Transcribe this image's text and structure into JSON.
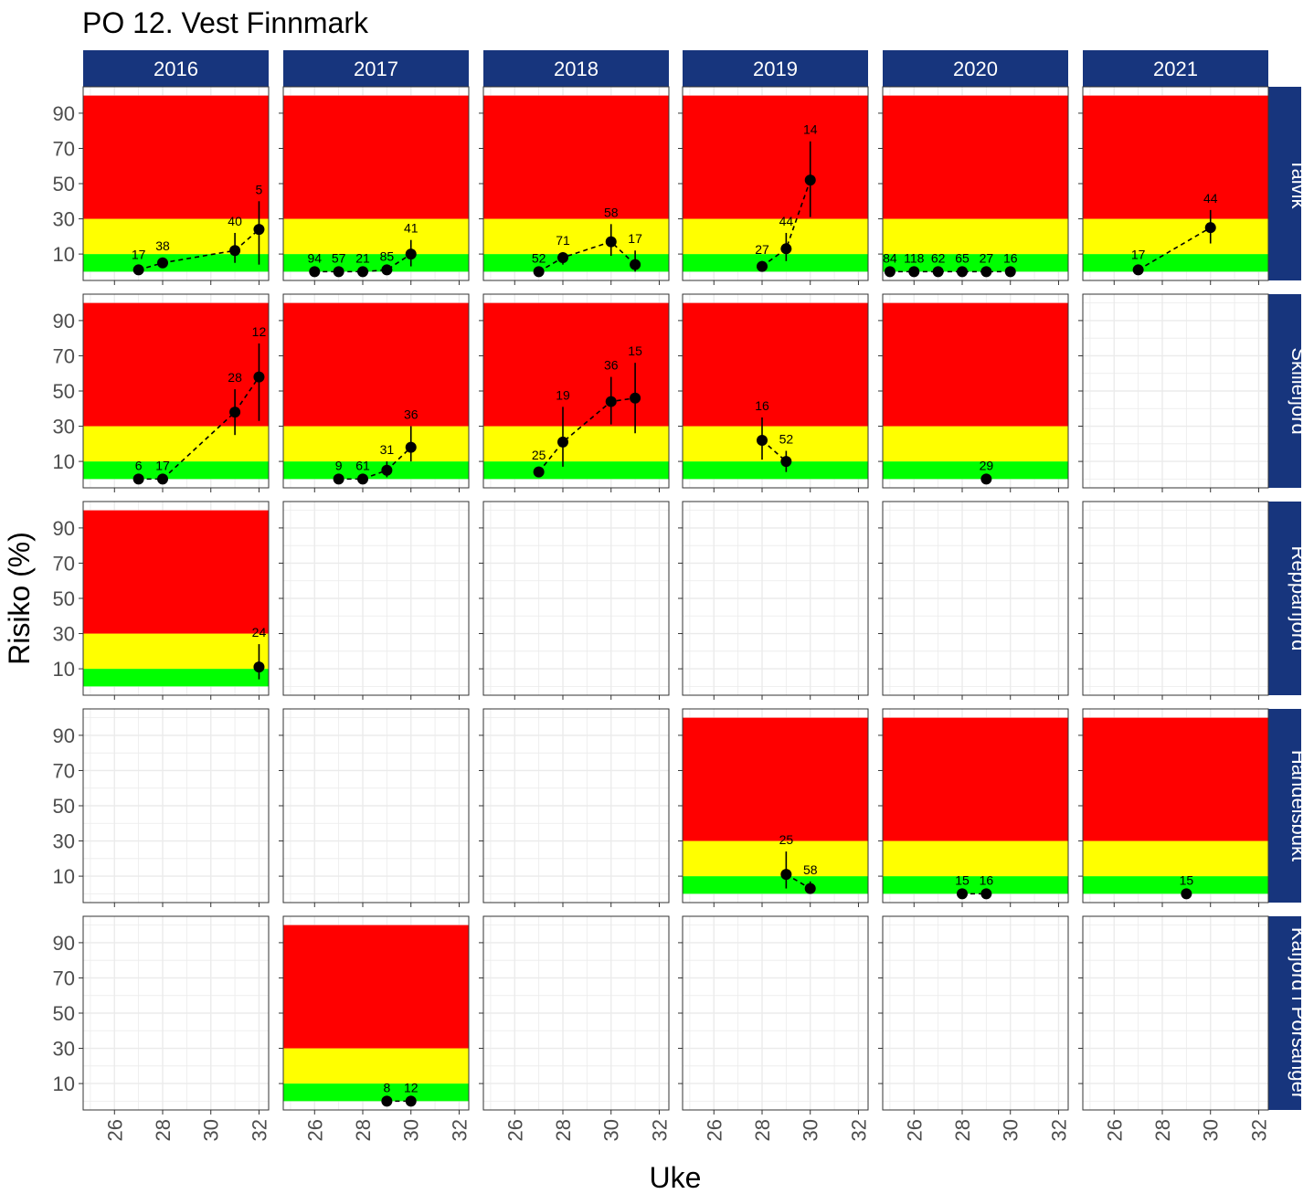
{
  "chart_data": {
    "type": "scatter",
    "title": "PO 12. Vest Finnmark",
    "xlabel": "Uke",
    "ylabel": "Risiko (%)",
    "x_ticks": [
      26,
      28,
      30,
      32
    ],
    "xlim": [
      24.7,
      32.4
    ],
    "y_ticks": [
      10,
      30,
      50,
      70,
      90
    ],
    "ylim": [
      -5,
      105
    ],
    "columns": [
      "2016",
      "2017",
      "2018",
      "2019",
      "2020",
      "2021"
    ],
    "rows": [
      "Talvik",
      "Skillefjord",
      "Repparfjord",
      "Handelsbukt",
      "Kåfjord i Porsanger"
    ],
    "risk_bands": [
      {
        "name": "low",
        "from": 0,
        "to": 10,
        "color": "#00FF00"
      },
      {
        "name": "moderate",
        "from": 10,
        "to": 30,
        "color": "#FFFF00"
      },
      {
        "name": "high",
        "from": 30,
        "to": 100,
        "color": "#FF0000"
      }
    ],
    "colors": {
      "strip_bg": "#17357D",
      "strip_text": "#FFFFFF",
      "grid": "#EBEBEB",
      "point": "#000000"
    },
    "panels": [
      {
        "row": "Talvik",
        "year": "2016",
        "points": [
          {
            "week": 27,
            "risk": 1,
            "lo": 0,
            "hi": 3,
            "n": "17"
          },
          {
            "week": 28,
            "risk": 5,
            "lo": 2,
            "hi": 8,
            "n": "38"
          },
          {
            "week": 31,
            "risk": 12,
            "lo": 5,
            "hi": 22,
            "n": "40"
          },
          {
            "week": 32,
            "risk": 24,
            "lo": 4,
            "hi": 40,
            "n": "5"
          }
        ]
      },
      {
        "row": "Talvik",
        "year": "2017",
        "points": [
          {
            "week": 26,
            "risk": 0,
            "lo": 0,
            "hi": 1,
            "n": "94"
          },
          {
            "week": 27,
            "risk": 0,
            "lo": 0,
            "hi": 1,
            "n": "57"
          },
          {
            "week": 28,
            "risk": 0,
            "lo": 0,
            "hi": 1,
            "n": "21"
          },
          {
            "week": 29,
            "risk": 1,
            "lo": 0,
            "hi": 2,
            "n": "85"
          },
          {
            "week": 30,
            "risk": 10,
            "lo": 3,
            "hi": 18,
            "n": "41"
          }
        ]
      },
      {
        "row": "Talvik",
        "year": "2018",
        "points": [
          {
            "week": 27,
            "risk": 0,
            "lo": 0,
            "hi": 1,
            "n": "52"
          },
          {
            "week": 28,
            "risk": 8,
            "lo": 4,
            "hi": 11,
            "n": "71"
          },
          {
            "week": 30,
            "risk": 17,
            "lo": 9,
            "hi": 27,
            "n": "58"
          },
          {
            "week": 31,
            "risk": 4,
            "lo": 0,
            "hi": 12,
            "n": "17"
          }
        ]
      },
      {
        "row": "Talvik",
        "year": "2019",
        "points": [
          {
            "week": 28,
            "risk": 3,
            "lo": 0,
            "hi": 6,
            "n": "27"
          },
          {
            "week": 29,
            "risk": 13,
            "lo": 6,
            "hi": 22,
            "n": "44"
          },
          {
            "week": 30,
            "risk": 52,
            "lo": 31,
            "hi": 74,
            "n": "14"
          }
        ]
      },
      {
        "row": "Talvik",
        "year": "2020",
        "points": [
          {
            "week": 25,
            "risk": 0,
            "lo": 0,
            "hi": 1,
            "n": "84"
          },
          {
            "week": 26,
            "risk": 0,
            "lo": 0,
            "hi": 1,
            "n": "118"
          },
          {
            "week": 27,
            "risk": 0,
            "lo": 0,
            "hi": 1,
            "n": "62"
          },
          {
            "week": 28,
            "risk": 0,
            "lo": 0,
            "hi": 1,
            "n": "65"
          },
          {
            "week": 29,
            "risk": 0,
            "lo": 0,
            "hi": 1,
            "n": "27"
          },
          {
            "week": 30,
            "risk": 0,
            "lo": 0,
            "hi": 1,
            "n": "16"
          }
        ]
      },
      {
        "row": "Talvik",
        "year": "2021",
        "points": [
          {
            "week": 27,
            "risk": 1,
            "lo": 0,
            "hi": 3,
            "n": "17"
          },
          {
            "week": 30,
            "risk": 25,
            "lo": 16,
            "hi": 35,
            "n": "44"
          }
        ]
      },
      {
        "row": "Skillefjord",
        "year": "2016",
        "points": [
          {
            "week": 27,
            "risk": 0,
            "lo": 0,
            "hi": 1,
            "n": "6"
          },
          {
            "week": 28,
            "risk": 0,
            "lo": 0,
            "hi": 1,
            "n": "17"
          },
          {
            "week": 31,
            "risk": 38,
            "lo": 25,
            "hi": 51,
            "n": "28"
          },
          {
            "week": 32,
            "risk": 58,
            "lo": 33,
            "hi": 77,
            "n": "12"
          }
        ]
      },
      {
        "row": "Skillefjord",
        "year": "2017",
        "points": [
          {
            "week": 27,
            "risk": 0,
            "lo": 0,
            "hi": 1,
            "n": "9"
          },
          {
            "week": 28,
            "risk": 0,
            "lo": 0,
            "hi": 1,
            "n": "61"
          },
          {
            "week": 29,
            "risk": 5,
            "lo": 1,
            "hi": 10,
            "n": "31"
          },
          {
            "week": 30,
            "risk": 18,
            "lo": 10,
            "hi": 30,
            "n": "36"
          }
        ]
      },
      {
        "row": "Skillefjord",
        "year": "2018",
        "points": [
          {
            "week": 27,
            "risk": 4,
            "lo": 1,
            "hi": 7,
            "n": "25"
          },
          {
            "week": 28,
            "risk": 21,
            "lo": 7,
            "hi": 41,
            "n": "19"
          },
          {
            "week": 30,
            "risk": 44,
            "lo": 31,
            "hi": 58,
            "n": "36"
          },
          {
            "week": 31,
            "risk": 46,
            "lo": 26,
            "hi": 66,
            "n": "15"
          }
        ]
      },
      {
        "row": "Skillefjord",
        "year": "2019",
        "points": [
          {
            "week": 28,
            "risk": 22,
            "lo": 11,
            "hi": 35,
            "n": "16"
          },
          {
            "week": 29,
            "risk": 10,
            "lo": 4,
            "hi": 16,
            "n": "52"
          }
        ]
      },
      {
        "row": "Skillefjord",
        "year": "2020",
        "points": [
          {
            "week": 29,
            "risk": 0,
            "lo": 0,
            "hi": 1,
            "n": "29"
          }
        ]
      },
      {
        "row": "Repparfjord",
        "year": "2016",
        "points": [
          {
            "week": 32,
            "risk": 11,
            "lo": 4,
            "hi": 24,
            "n": "24"
          }
        ]
      },
      {
        "row": "Handelsbukt",
        "year": "2019",
        "points": [
          {
            "week": 29,
            "risk": 11,
            "lo": 3,
            "hi": 24,
            "n": "25"
          },
          {
            "week": 30,
            "risk": 3,
            "lo": 0,
            "hi": 7,
            "n": "58"
          }
        ]
      },
      {
        "row": "Handelsbukt",
        "year": "2020",
        "points": [
          {
            "week": 28,
            "risk": 0,
            "lo": 0,
            "hi": 1,
            "n": "15"
          },
          {
            "week": 29,
            "risk": 0,
            "lo": 0,
            "hi": 1,
            "n": "16"
          }
        ]
      },
      {
        "row": "Handelsbukt",
        "year": "2021",
        "points": [
          {
            "week": 29,
            "risk": 0,
            "lo": 0,
            "hi": 1,
            "n": "15"
          }
        ]
      },
      {
        "row": "Kåfjord i Porsanger",
        "year": "2017",
        "points": [
          {
            "week": 29,
            "risk": 0,
            "lo": 0,
            "hi": 1,
            "n": "8"
          },
          {
            "week": 30,
            "risk": 0,
            "lo": 0,
            "hi": 1,
            "n": "12"
          }
        ]
      }
    ]
  }
}
